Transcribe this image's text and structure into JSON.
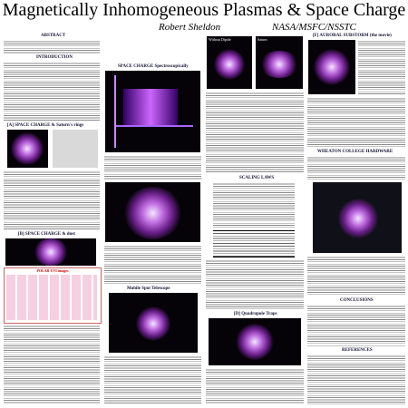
{
  "header": {
    "title": "Magnetically Inhomogeneous  Plasmas & Space Charge",
    "author": "Robert Sheldon",
    "affiliation": "NASA/MSFC/NSSTC"
  },
  "sections": {
    "abstract": "ABSTRACT",
    "introduction": "INTRODUCTION",
    "saturn": "[A] SPACE CHARGE & Saturn's rings",
    "dust": "[B] SPACE CHARGE & dust",
    "spectro": "SPACE CHARGE Spectroscopically",
    "mobile": "Mobile Spot Telescope",
    "scaling": "SCALING LAWS",
    "quadrupole": "[D] Quadrupole Traps",
    "substorm": "[F] AURORAL SUBSTORM (the movie)",
    "hardware": "WHEATON COLLEGE HARDWARE",
    "conclusions": "CONCLUSIONS",
    "references": "REFERENCES"
  },
  "figures": {
    "polar": "POLAR UVI images",
    "dipole": "Without Dipole",
    "saturn": "Saturn"
  }
}
